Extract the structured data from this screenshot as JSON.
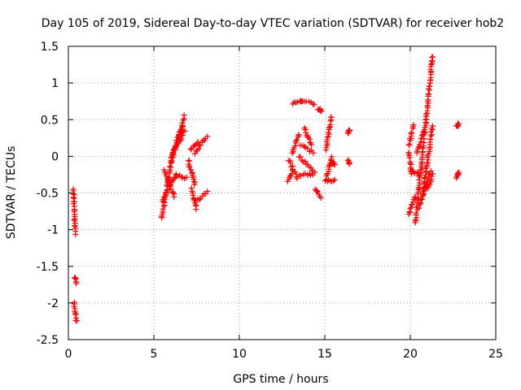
{
  "chart_data": {
    "type": "scatter",
    "title": "Day 105 of 2019, Sidereal Day-to-day VTEC variation (SDTVAR) for receiver hob2",
    "xlabel": "GPS time / hours",
    "ylabel": "SDTVAR / TECUs",
    "xlim": [
      0,
      25
    ],
    "ylim": [
      -2.5,
      1.5
    ],
    "xticks": [
      0,
      5,
      10,
      15,
      20,
      25
    ],
    "xtick_labels": [
      "0",
      "5",
      "10",
      "15",
      "20",
      "25"
    ],
    "yticks": [
      -2.5,
      -2,
      -1.5,
      -1,
      -0.5,
      0,
      0.5,
      1,
      1.5
    ],
    "ytick_labels": [
      "-2.5",
      "-2",
      "-1.5",
      "-1",
      "-0.5",
      "0",
      "0.5",
      "1",
      "1.5"
    ],
    "grid": true,
    "marker": "+",
    "color": "#ff0000",
    "series": [
      {
        "name": "SDTVAR",
        "segments": [
          {
            "x0": 0.3,
            "x1": 0.4,
            "y0": -0.45,
            "y1": -1.05
          },
          {
            "x0": 0.36,
            "x1": 0.48,
            "y0": -1.65,
            "y1": -1.72
          },
          {
            "x0": 0.32,
            "x1": 0.48,
            "y0": -2.0,
            "y1": -2.25
          },
          {
            "x0": 5.45,
            "x1": 6.1,
            "y0": -0.85,
            "y1": 0.05
          },
          {
            "x0": 5.5,
            "x1": 6.3,
            "y0": -0.6,
            "y1": -0.25
          },
          {
            "x0": 5.6,
            "x1": 6.2,
            "y0": -0.2,
            "y1": -0.55
          },
          {
            "x0": 6.0,
            "x1": 6.8,
            "y0": -0.05,
            "y1": 0.55
          },
          {
            "x0": 6.1,
            "x1": 6.7,
            "y0": 0.0,
            "y1": 0.4
          },
          {
            "x0": 6.3,
            "x1": 6.9,
            "y0": -0.25,
            "y1": -0.3
          },
          {
            "x0": 6.4,
            "x1": 6.8,
            "y0": 0.15,
            "y1": 0.35
          },
          {
            "x0": 7.0,
            "x1": 7.4,
            "y0": -0.05,
            "y1": -0.4
          },
          {
            "x0": 7.2,
            "x1": 7.5,
            "y0": -0.45,
            "y1": -0.72
          },
          {
            "x0": 7.15,
            "x1": 7.6,
            "y0": 0.1,
            "y1": 0.2
          },
          {
            "x0": 7.4,
            "x1": 8.1,
            "y0": 0.05,
            "y1": 0.27
          },
          {
            "x0": 7.5,
            "x1": 8.1,
            "y0": -0.62,
            "y1": -0.48
          },
          {
            "x0": 12.85,
            "x1": 13.1,
            "y0": -0.35,
            "y1": -0.2
          },
          {
            "x0": 12.9,
            "x1": 13.4,
            "y0": -0.05,
            "y1": -0.3
          },
          {
            "x0": 13.1,
            "x1": 13.5,
            "y0": 0.05,
            "y1": 0.3
          },
          {
            "x0": 13.15,
            "x1": 13.7,
            "y0": 0.72,
            "y1": 0.75
          },
          {
            "x0": 13.6,
            "x1": 14.4,
            "y0": 0.75,
            "y1": 0.72
          },
          {
            "x0": 13.5,
            "x1": 14.4,
            "y0": 0.0,
            "y1": -0.22
          },
          {
            "x0": 13.6,
            "x1": 14.3,
            "y0": 0.15,
            "y1": 0.05
          },
          {
            "x0": 13.8,
            "x1": 14.2,
            "y0": 0.4,
            "y1": 0.15
          },
          {
            "x0": 13.5,
            "x1": 14.3,
            "y0": -0.25,
            "y1": -0.25
          },
          {
            "x0": 14.45,
            "x1": 14.75,
            "y0": -0.45,
            "y1": -0.55
          },
          {
            "x0": 14.6,
            "x1": 14.8,
            "y0": 0.65,
            "y1": 0.62
          },
          {
            "x0": 15.05,
            "x1": 15.4,
            "y0": 0.1,
            "y1": 0.55
          },
          {
            "x0": 15.1,
            "x1": 15.4,
            "y0": -0.3,
            "y1": 0.0
          },
          {
            "x0": 15.05,
            "x1": 15.6,
            "y0": -0.33,
            "y1": -0.33
          },
          {
            "x0": 15.4,
            "x1": 15.6,
            "y0": -0.1,
            "y1": -0.1
          },
          {
            "x0": 16.35,
            "x1": 16.45,
            "y0": 0.32,
            "y1": 0.35
          },
          {
            "x0": 16.35,
            "x1": 16.45,
            "y0": -0.05,
            "y1": -0.1
          },
          {
            "x0": 19.9,
            "x1": 20.3,
            "y0": -0.8,
            "y1": -0.55
          },
          {
            "x0": 19.9,
            "x1": 20.2,
            "y0": 0.15,
            "y1": 0.42
          },
          {
            "x0": 19.9,
            "x1": 20.1,
            "y0": 0.05,
            "y1": -0.25
          },
          {
            "x0": 20.1,
            "x1": 20.5,
            "y0": -0.2,
            "y1": -0.25
          },
          {
            "x0": 20.3,
            "x1": 20.6,
            "y0": -0.92,
            "y1": -0.2
          },
          {
            "x0": 20.4,
            "x1": 20.8,
            "y0": 0.05,
            "y1": 0.35
          },
          {
            "x0": 20.5,
            "x1": 21.0,
            "y0": -0.7,
            "y1": -0.35
          },
          {
            "x0": 20.6,
            "x1": 21.3,
            "y0": -0.25,
            "y1": 1.37
          },
          {
            "x0": 20.7,
            "x1": 21.3,
            "y0": -0.55,
            "y1": 0.4
          },
          {
            "x0": 20.8,
            "x1": 21.2,
            "y0": -0.45,
            "y1": -0.2
          },
          {
            "x0": 21.0,
            "x1": 21.3,
            "y0": -0.45,
            "y1": -0.25
          },
          {
            "x0": 22.7,
            "x1": 22.85,
            "y0": 0.4,
            "y1": 0.44
          },
          {
            "x0": 22.7,
            "x1": 22.85,
            "y0": -0.28,
            "y1": -0.22
          }
        ]
      }
    ]
  }
}
